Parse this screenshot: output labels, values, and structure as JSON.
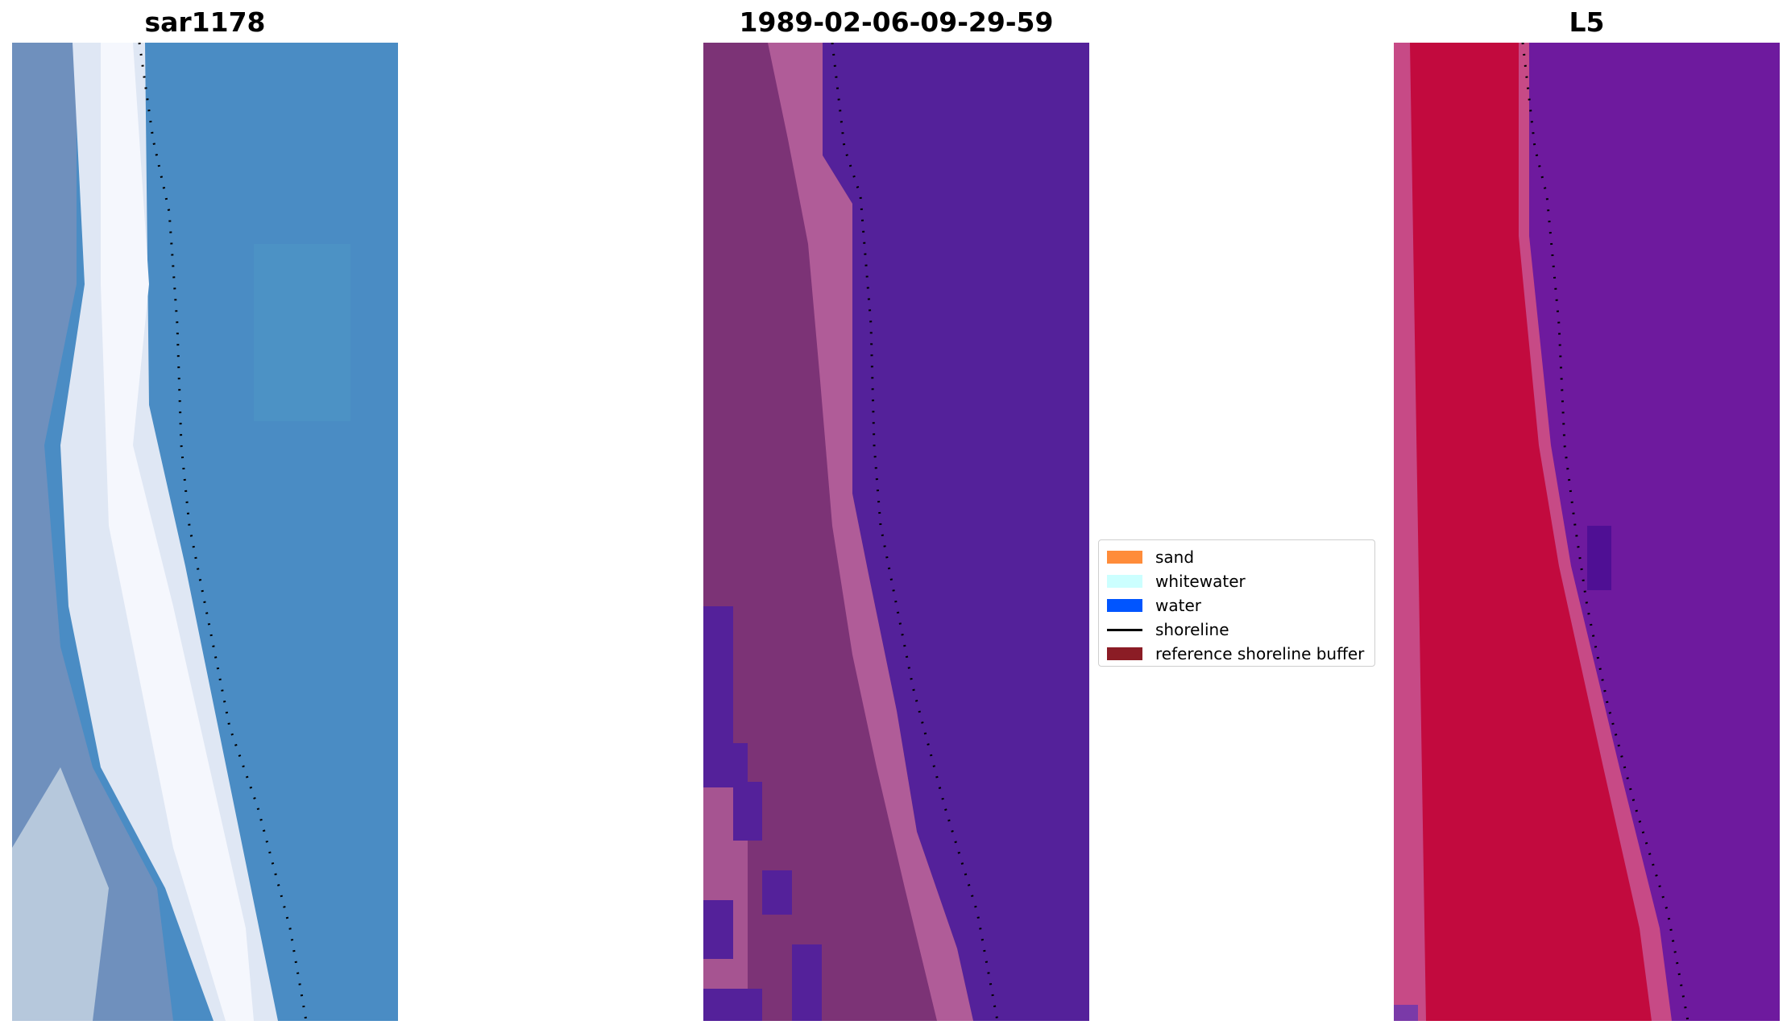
{
  "panels": [
    {
      "title": "sar1178",
      "kind": "rgb-image"
    },
    {
      "title": "1989-02-06-09-29-59",
      "kind": "classification"
    },
    {
      "title": "L5",
      "kind": "index-image"
    }
  ],
  "legend": {
    "items": [
      {
        "label": "sand",
        "color": "#ff8c3a",
        "type": "patch"
      },
      {
        "label": "whitewater",
        "color": "#ccffff",
        "type": "patch"
      },
      {
        "label": "water",
        "color": "#0055ff",
        "type": "patch"
      },
      {
        "label": "shoreline",
        "color": "#000000",
        "type": "line"
      },
      {
        "label": "reference shoreline buffer",
        "color": "#8b1c25",
        "type": "patch"
      }
    ]
  },
  "colors": {
    "rgb_water": "#4a8cc4",
    "rgb_land": "#6f90bd",
    "rgb_surf": "#eef2fa",
    "class_water": "#54219a",
    "class_buffer": "#7c3376",
    "class_pink": "#b05c98",
    "index_red": "#c20a3e",
    "index_pink": "#c74a86",
    "index_purple": "#6e1a9e"
  }
}
